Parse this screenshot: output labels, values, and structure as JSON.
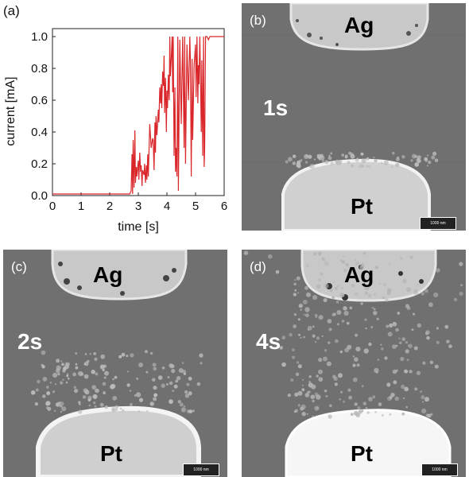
{
  "panels": {
    "a": {
      "label": "(a)"
    },
    "b": {
      "label": "(b)",
      "top_electrode": "Ag",
      "bottom_electrode": "Pt",
      "time": "1s",
      "scalebar": "1000 nm",
      "dendrite_growth": 0.15
    },
    "c": {
      "label": "(c)",
      "top_electrode": "Ag",
      "bottom_electrode": "Pt",
      "time": "2s",
      "scalebar": "1000 nm",
      "dendrite_growth": 0.45
    },
    "d": {
      "label": "(d)",
      "top_electrode": "Ag",
      "bottom_electrode": "Pt",
      "time": "4s",
      "scalebar": "1000 nm",
      "dendrite_growth": 0.9
    }
  },
  "chart_data": {
    "type": "line",
    "xlabel": "time [s]",
    "ylabel": "current [mA]",
    "xlim": [
      0,
      6
    ],
    "ylim": [
      0,
      1.05
    ],
    "xticks": [
      "0",
      "1",
      "2",
      "3",
      "4",
      "5",
      "6"
    ],
    "yticks": [
      "0.0",
      "0.2",
      "0.4",
      "0.6",
      "0.8",
      "1.0"
    ],
    "line_color": "#d9262a",
    "grid": false,
    "series": [
      {
        "x": [
          0,
          2.7,
          2.75,
          2.78,
          2.8,
          2.82,
          2.85,
          2.88,
          2.9,
          2.93,
          2.95,
          3.0,
          3.02,
          3.05,
          3.08,
          3.1,
          3.13,
          3.15,
          3.2,
          3.22,
          3.25,
          3.28,
          3.3,
          3.33,
          3.35,
          3.4,
          3.45,
          3.5,
          3.52,
          3.55,
          3.58,
          3.6,
          3.62,
          3.65,
          3.7,
          3.72,
          3.75,
          3.78,
          3.8,
          3.82,
          3.85,
          3.88,
          3.9,
          3.92,
          3.95,
          3.98,
          4.0,
          4.02,
          4.05,
          4.08,
          4.1,
          4.12,
          4.15,
          4.18,
          4.2,
          4.22,
          4.25,
          4.28,
          4.3,
          4.32,
          4.35,
          4.38,
          4.4,
          4.45,
          4.5,
          4.55,
          4.6,
          4.62,
          4.65,
          4.7,
          4.75,
          4.8,
          4.82,
          4.85,
          4.88,
          4.9,
          4.95,
          5.0,
          5.02,
          5.05,
          5.08,
          5.1,
          5.12,
          5.15,
          5.2,
          5.22,
          5.25,
          5.28,
          5.3,
          5.32,
          5.35,
          5.4,
          5.45,
          5.5,
          6.0
        ],
        "y": [
          0.01,
          0.01,
          0.03,
          0.26,
          0.01,
          0.35,
          0.05,
          0.41,
          0.08,
          0.18,
          0.12,
          0.22,
          0.1,
          0.27,
          0.15,
          0.19,
          0.06,
          0.16,
          0.13,
          0.2,
          0.08,
          0.19,
          0.1,
          0.26,
          0.12,
          0.45,
          0.3,
          0.36,
          0.35,
          0.16,
          0.46,
          0.27,
          0.5,
          0.38,
          0.54,
          0.46,
          0.68,
          0.58,
          0.7,
          0.55,
          0.78,
          0.69,
          0.88,
          0.52,
          0.74,
          0.4,
          0.66,
          0.55,
          0.76,
          0.6,
          1.0,
          0.75,
          0.86,
          1.0,
          0.65,
          1.0,
          0.25,
          0.68,
          0.15,
          0.3,
          0.12,
          1.0,
          0.03,
          0.98,
          0.45,
          1.0,
          0.3,
          1.0,
          0.2,
          0.95,
          0.6,
          1.0,
          0.85,
          0.12,
          0.86,
          0.35,
          0.82,
          0.95,
          0.62,
          1.0,
          0.58,
          0.82,
          0.7,
          1.0,
          0.4,
          0.85,
          0.25,
          1.0,
          0.18,
          0.3,
          1.0,
          1.0,
          0.98,
          1.0,
          1.0
        ]
      }
    ]
  }
}
